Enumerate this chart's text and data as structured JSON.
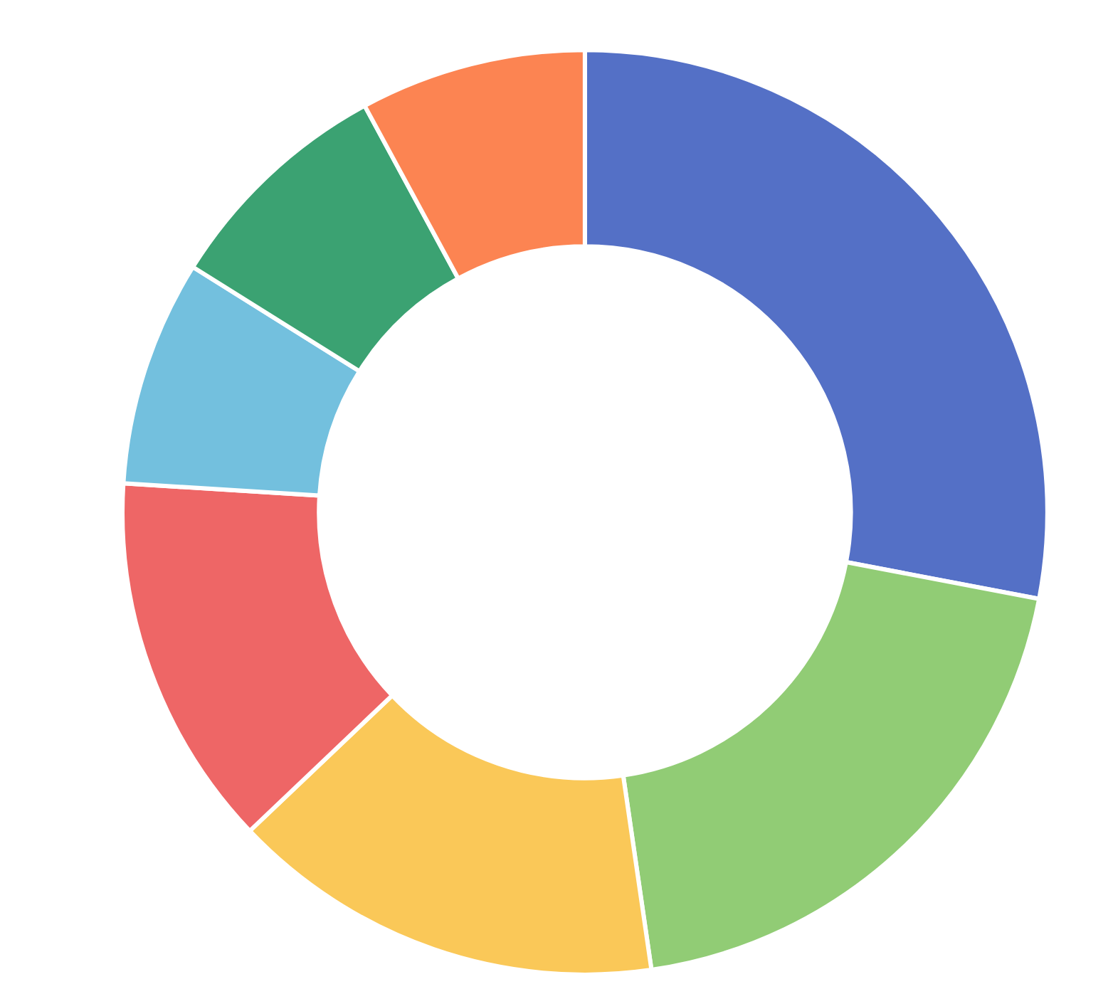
{
  "chart_data": {
    "type": "donut",
    "categories": [
      null,
      null,
      null,
      null,
      null,
      null,
      null
    ],
    "values": [
      28,
      19.7,
      15.2,
      13.1,
      7.9,
      8.2,
      7.9
    ],
    "colors": [
      "#5470c6",
      "#91cc75",
      "#fac858",
      "#ee6666",
      "#73c0de",
      "#3ba272",
      "#fc8452"
    ],
    "legend": false
  }
}
